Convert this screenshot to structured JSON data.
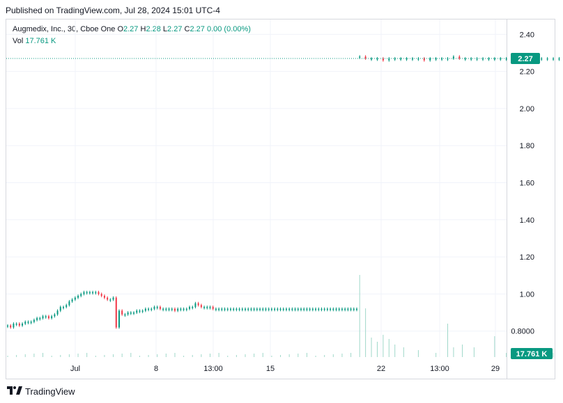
{
  "published": "Published on TradingView.com, Jul 28, 2024 15:01 UTC-4",
  "legend": {
    "symbol": "Augmedix, Inc., 30, Cboe One",
    "o_label": "O",
    "o": "2.27",
    "h_label": "H",
    "h": "2.28",
    "l_label": "L",
    "l": "2.27",
    "c_label": "C",
    "c": "2.27",
    "change": "0.00 (0.00%)",
    "vol_label": "Vol",
    "vol": "17.761 K"
  },
  "footer": {
    "brand": "TradingView",
    "logo_icon": "tradingview-logo-icon"
  },
  "colors": {
    "up": "#089981",
    "down": "#f23645",
    "grid": "#f0f3fa",
    "text": "#131722",
    "price_tag": "#089981"
  },
  "chart_data": {
    "type": "candlestick",
    "title": "",
    "ylim": [
      0.66,
      2.48
    ],
    "yticks": [
      "2.40",
      "2.20",
      "2.00",
      "1.80",
      "1.60",
      "1.40",
      "1.20",
      "1.00",
      "0.8000"
    ],
    "ytick_values": [
      2.4,
      2.2,
      2.0,
      1.8,
      1.6,
      1.4,
      1.2,
      1.0,
      0.8
    ],
    "xticks": [
      "Jul",
      "8",
      "13:00",
      "15",
      "22",
      "13:00",
      "29"
    ],
    "last_price_label": "2.27",
    "last_price": 2.27,
    "volume_label": "17.761 K",
    "series": [
      {
        "name": "price",
        "x": [
          0,
          2,
          4,
          6,
          8,
          10,
          12,
          14,
          16,
          18,
          20,
          22,
          24,
          26,
          28,
          30,
          32,
          34,
          36,
          38,
          40,
          42,
          44,
          46,
          48,
          50,
          52,
          54,
          56,
          58,
          60,
          62,
          64,
          66,
          68,
          70,
          72,
          74,
          76,
          78,
          80,
          82,
          84,
          86,
          88,
          90,
          92,
          94,
          96,
          98,
          100,
          102,
          104,
          106,
          108,
          110,
          112,
          114,
          116,
          118,
          120,
          122,
          124,
          126,
          128,
          130,
          132,
          134,
          136,
          138,
          140,
          142,
          144,
          146,
          148,
          150,
          152,
          154,
          156,
          158,
          160,
          162,
          164,
          166,
          168,
          170,
          172,
          174,
          176,
          178,
          180,
          182,
          184,
          186,
          188,
          190,
          192,
          194,
          196,
          198,
          200,
          202,
          204,
          206,
          208,
          210,
          212,
          214,
          216,
          218,
          220,
          222,
          224,
          226,
          228,
          230,
          232,
          234,
          236,
          238
        ],
        "y": [
          0.83,
          0.82,
          0.84,
          0.84,
          0.83,
          0.84,
          0.85,
          0.85,
          0.85,
          0.86,
          0.87,
          0.87,
          0.88,
          0.88,
          0.87,
          0.88,
          0.89,
          0.91,
          0.93,
          0.93,
          0.94,
          0.96,
          0.97,
          0.98,
          0.99,
          1.0,
          1.01,
          1.01,
          1.01,
          1.01,
          1.01,
          1.0,
          0.99,
          0.98,
          0.97,
          0.97,
          0.98,
          0.82,
          0.91,
          0.89,
          0.89,
          0.9,
          0.9,
          0.9,
          0.91,
          0.91,
          0.91,
          0.92,
          0.92,
          0.92,
          0.93,
          0.93,
          0.92,
          0.92,
          0.92,
          0.92,
          0.92,
          0.91,
          0.92,
          0.92,
          0.92,
          0.92,
          0.93,
          0.93,
          0.95,
          0.94,
          0.93,
          0.93,
          0.93,
          0.93,
          0.92,
          0.92,
          0.92,
          0.92,
          0.92,
          0.92,
          0.92,
          0.92,
          0.92,
          0.92,
          0.92,
          0.92,
          0.92,
          0.92,
          0.92,
          0.92,
          0.92,
          0.92,
          0.92,
          0.92,
          0.92,
          0.92,
          0.92,
          0.92,
          0.92,
          0.92,
          0.92,
          0.92,
          0.92,
          0.92,
          0.92,
          0.92,
          0.92,
          0.92,
          0.92,
          0.92,
          0.92,
          0.92,
          0.92,
          0.92,
          0.92,
          0.92,
          0.92,
          0.92,
          0.92,
          0.92,
          0.92,
          0.92,
          0.92,
          0.92
        ]
      },
      {
        "name": "price_after_gap",
        "x": [
          240,
          244,
          248,
          252,
          256,
          260,
          264,
          268,
          272,
          276,
          280,
          284,
          288,
          292,
          296,
          300,
          304,
          308,
          312,
          316,
          320,
          324,
          328,
          332,
          336,
          340,
          344,
          348,
          352,
          356,
          360,
          364,
          368,
          372,
          376,
          380,
          384,
          388,
          392,
          396
        ],
        "y": [
          2.28,
          2.27,
          2.27,
          2.27,
          2.26,
          2.27,
          2.27,
          2.27,
          2.27,
          2.27,
          2.27,
          2.26,
          2.27,
          2.27,
          2.27,
          2.27,
          2.28,
          2.27,
          2.27,
          2.27,
          2.27,
          2.27,
          2.27,
          2.27,
          2.27,
          2.27,
          2.27,
          2.27,
          2.27,
          2.27,
          2.27,
          2.27,
          2.27,
          2.27,
          2.27,
          2.27,
          2.27,
          2.27,
          2.27,
          2.27
        ]
      }
    ]
  }
}
